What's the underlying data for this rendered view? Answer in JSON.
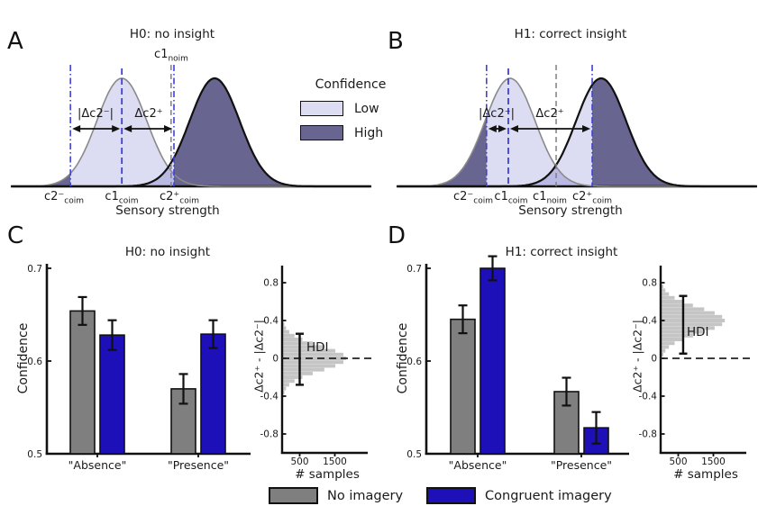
{
  "panels": {
    "a": "A",
    "b": "B",
    "c": "C",
    "d": "D"
  },
  "colors": {
    "text": "#1a1a1a",
    "low_fill": "#dcdcf2",
    "overlap_fill": "#b9b9e4",
    "high_fill": "#686590",
    "low_outline": "#8a8a8a",
    "high_outline": "#111111",
    "criterion_blue": "#4040d8",
    "criterion_gray": "#808080",
    "bar_gray": "#7f7f7f",
    "bar_blue": "#1e10b8",
    "hist_fill": "#c5c5c5",
    "axis": "#111111"
  },
  "legend_confidence": {
    "title": "Confidence",
    "items": [
      {
        "label": "Low",
        "color": "#dcdcf2"
      },
      {
        "label": "High",
        "color": "#686590"
      }
    ]
  },
  "legend_imagery": {
    "items": [
      {
        "label": "No imagery",
        "color": "#7f7f7f"
      },
      {
        "label": "Congruent imagery",
        "color": "#1e10b8"
      }
    ]
  },
  "panelA_labels": {
    "top": {
      "base": "c1",
      "sub": "noim"
    },
    "xticks": [
      {
        "base": "c2⁻",
        "sub": "coim"
      },
      {
        "base": "c1",
        "sub": "coim"
      },
      {
        "base": "c2⁺",
        "sub": "coim"
      }
    ]
  },
  "panelB_labels": {
    "xticks": [
      {
        "base": "c2⁻",
        "sub": "coim"
      },
      {
        "base": "c1",
        "sub": "coim"
      },
      {
        "base": "c1",
        "sub": "noim"
      },
      {
        "base": "c2⁺",
        "sub": "coim"
      }
    ]
  },
  "chart_data": [
    {
      "id": "A",
      "type": "area",
      "title": "H0: no insight",
      "xlabel": "Sensory strength",
      "x_range": [
        0,
        100
      ],
      "curves": [
        {
          "name": "low-strength-distribution",
          "mean": 30.6,
          "sd": 7.0,
          "peak": 1.0,
          "outline": "gray"
        },
        {
          "name": "high-strength-distribution",
          "mean": 56.6,
          "sd": 7.0,
          "peak": 1.0,
          "outline": "black"
        }
      ],
      "criteria": {
        "c2_minus": 16.2,
        "c1_coim": 30.6,
        "c1_noim": 44.4,
        "c2_plus": 45.2
      },
      "annotations": {
        "delta_neg": "|Δc2⁻|",
        "delta_pos": "Δc2⁺"
      }
    },
    {
      "id": "B",
      "type": "area",
      "title": "H1: correct insight",
      "xlabel": "Sensory strength",
      "x_range": [
        0,
        100
      ],
      "curves": [
        {
          "name": "low-strength-distribution",
          "mean": 31.3,
          "sd": 7.0,
          "peak": 1.0,
          "outline": "gray"
        },
        {
          "name": "high-strength-distribution",
          "mean": 56.8,
          "sd": 7.0,
          "peak": 1.0,
          "outline": "black"
        }
      ],
      "criteria": {
        "c2_minus": 24.7,
        "c1_coim": 30.8,
        "c1_noim": 44.2,
        "c2_plus": 54.3
      },
      "annotations": {
        "delta_neg": "|Δc2⁻|",
        "delta_pos": "Δc2⁺"
      }
    },
    {
      "id": "C",
      "type": "bar",
      "title": "H0: no insight",
      "ylabel": "Confidence",
      "ylim": [
        0.5,
        0.7
      ],
      "yticks": [
        0.7,
        0.6,
        0.5
      ],
      "categories": [
        "\"Absence\"",
        "\"Presence\""
      ],
      "series": [
        {
          "name": "No imagery",
          "color": "#7f7f7f",
          "values": [
            0.654,
            0.57
          ],
          "errors": [
            0.015,
            0.016
          ]
        },
        {
          "name": "Congruent imagery",
          "color": "#1e10b8",
          "values": [
            0.628,
            0.629
          ],
          "errors": [
            0.016,
            0.015
          ]
        }
      ]
    },
    {
      "id": "C_hdi",
      "type": "histogram",
      "orientation": "horizontal",
      "ylabel": "Δc2⁺ - |Δc2⁻|",
      "xlabel": "# samples",
      "yticks": [
        0.8,
        0.4,
        0,
        -0.4,
        -0.8
      ],
      "xticks": [
        500,
        1500
      ],
      "ylim": [
        -0.95,
        0.95
      ],
      "zero_line": 0,
      "bin_centers": [
        -0.36,
        -0.32,
        -0.28,
        -0.24,
        -0.2,
        -0.16,
        -0.12,
        -0.08,
        -0.04,
        0,
        0.04,
        0.08,
        0.12,
        0.16,
        0.2,
        0.24,
        0.28,
        0.32,
        0.36
      ],
      "counts": [
        39,
        87,
        177,
        328,
        551,
        844,
        1175,
        1489,
        1717,
        1800,
        1717,
        1489,
        1175,
        844,
        551,
        328,
        177,
        87,
        39
      ],
      "hdi_interval": [
        -0.28,
        0.26
      ],
      "hdi_bar_samples": 500,
      "hdi_label": "HDI"
    },
    {
      "id": "D",
      "type": "bar",
      "title": "H1: correct insight",
      "ylabel": "Confidence",
      "ylim": [
        0.5,
        0.7
      ],
      "yticks": [
        0.7,
        0.6,
        0.5
      ],
      "categories": [
        "\"Absence\"",
        "\"Presence\""
      ],
      "series": [
        {
          "name": "No imagery",
          "color": "#7f7f7f",
          "values": [
            0.645,
            0.567
          ],
          "errors": [
            0.015,
            0.015
          ]
        },
        {
          "name": "Congruent imagery",
          "color": "#1e10b8",
          "values": [
            0.7,
            0.528
          ],
          "errors": [
            0.013,
            0.017
          ]
        }
      ]
    },
    {
      "id": "D_hdi",
      "type": "histogram",
      "orientation": "horizontal",
      "ylabel": "Δc2⁺ - |Δc2⁻|",
      "xlabel": "# samples",
      "yticks": [
        0.8,
        0.4,
        0,
        -0.4,
        -0.8
      ],
      "xticks": [
        500,
        1500
      ],
      "ylim": [
        -0.95,
        0.95
      ],
      "zero_line": 0,
      "bin_centers": [
        0.04,
        0.08,
        0.12,
        0.16,
        0.2,
        0.24,
        0.28,
        0.32,
        0.36,
        0.4,
        0.44,
        0.48,
        0.52,
        0.56,
        0.6,
        0.64,
        0.68,
        0.72,
        0.76
      ],
      "counts": [
        51,
        108,
        210,
        371,
        601,
        892,
        1212,
        1510,
        1723,
        1800,
        1723,
        1510,
        1212,
        892,
        601,
        371,
        210,
        108,
        51
      ],
      "hdi_interval": [
        0.05,
        0.66
      ],
      "hdi_bar_samples": 640,
      "hdi_label": "HDI"
    }
  ]
}
